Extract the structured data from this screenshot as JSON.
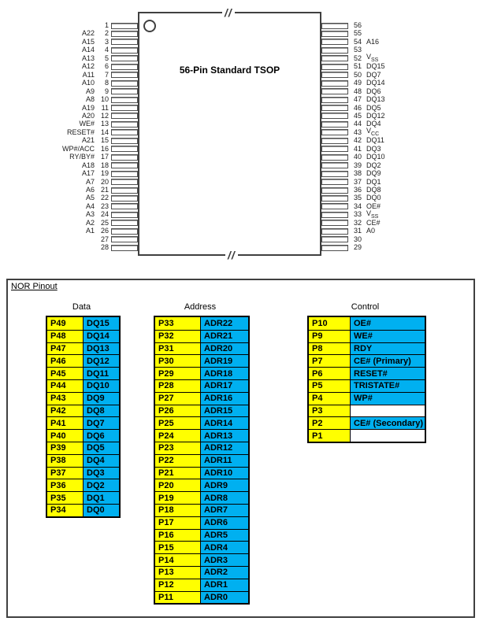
{
  "chip": {
    "title": "56-Pin Standard TSOP",
    "break_mark": "//",
    "left_pins": [
      {
        "num": "1",
        "label": ""
      },
      {
        "num": "2",
        "label": "A22"
      },
      {
        "num": "3",
        "label": "A15"
      },
      {
        "num": "4",
        "label": "A14"
      },
      {
        "num": "5",
        "label": "A13"
      },
      {
        "num": "6",
        "label": "A12"
      },
      {
        "num": "7",
        "label": "A11"
      },
      {
        "num": "8",
        "label": "A10"
      },
      {
        "num": "9",
        "label": "A9"
      },
      {
        "num": "10",
        "label": "A8"
      },
      {
        "num": "11",
        "label": "A19"
      },
      {
        "num": "12",
        "label": "A20"
      },
      {
        "num": "13",
        "label": "WE#"
      },
      {
        "num": "14",
        "label": "RESET#"
      },
      {
        "num": "15",
        "label": "A21"
      },
      {
        "num": "16",
        "label": "WP#/ACC"
      },
      {
        "num": "17",
        "label": "RY/BY#"
      },
      {
        "num": "18",
        "label": "A18"
      },
      {
        "num": "19",
        "label": "A17"
      },
      {
        "num": "20",
        "label": "A7"
      },
      {
        "num": "21",
        "label": "A6"
      },
      {
        "num": "22",
        "label": "A5"
      },
      {
        "num": "23",
        "label": "A4"
      },
      {
        "num": "24",
        "label": "A3"
      },
      {
        "num": "25",
        "label": "A2"
      },
      {
        "num": "26",
        "label": "A1"
      },
      {
        "num": "27",
        "label": ""
      },
      {
        "num": "28",
        "label": ""
      }
    ],
    "right_pins": [
      {
        "num": "56",
        "label": ""
      },
      {
        "num": "55",
        "label": ""
      },
      {
        "num": "54",
        "label": "A16"
      },
      {
        "num": "53",
        "label": ""
      },
      {
        "num": "52",
        "label": "Vss"
      },
      {
        "num": "51",
        "label": "DQ15"
      },
      {
        "num": "50",
        "label": "DQ7"
      },
      {
        "num": "49",
        "label": "DQ14"
      },
      {
        "num": "48",
        "label": "DQ6"
      },
      {
        "num": "47",
        "label": "DQ13"
      },
      {
        "num": "46",
        "label": "DQ5"
      },
      {
        "num": "45",
        "label": "DQ12"
      },
      {
        "num": "44",
        "label": "DQ4"
      },
      {
        "num": "43",
        "label": "Vcc"
      },
      {
        "num": "42",
        "label": "DQ11"
      },
      {
        "num": "41",
        "label": "DQ3"
      },
      {
        "num": "40",
        "label": "DQ10"
      },
      {
        "num": "39",
        "label": "DQ2"
      },
      {
        "num": "38",
        "label": "DQ9"
      },
      {
        "num": "37",
        "label": "DQ1"
      },
      {
        "num": "36",
        "label": "DQ8"
      },
      {
        "num": "35",
        "label": "DQ0"
      },
      {
        "num": "34",
        "label": "OE#"
      },
      {
        "num": "33",
        "label": "Vss"
      },
      {
        "num": "32",
        "label": "CE#"
      },
      {
        "num": "31",
        "label": "A0"
      },
      {
        "num": "30",
        "label": ""
      },
      {
        "num": "29",
        "label": ""
      }
    ]
  },
  "nor_pinout": {
    "section_title": "NOR Pinout",
    "colors": {
      "pin_cell": "#FFFF00",
      "signal_cell": "#00B0F0",
      "empty_cell": "#FFFFFF",
      "table_border": "#000000"
    },
    "tables": [
      {
        "name": "data",
        "header": "Data",
        "rows": [
          [
            "P49",
            "DQ15"
          ],
          [
            "P48",
            "DQ14"
          ],
          [
            "P47",
            "DQ13"
          ],
          [
            "P46",
            "DQ12"
          ],
          [
            "P45",
            "DQ11"
          ],
          [
            "P44",
            "DQ10"
          ],
          [
            "P43",
            "DQ9"
          ],
          [
            "P42",
            "DQ8"
          ],
          [
            "P41",
            "DQ7"
          ],
          [
            "P40",
            "DQ6"
          ],
          [
            "P39",
            "DQ5"
          ],
          [
            "P38",
            "DQ4"
          ],
          [
            "P37",
            "DQ3"
          ],
          [
            "P36",
            "DQ2"
          ],
          [
            "P35",
            "DQ1"
          ],
          [
            "P34",
            "DQ0"
          ]
        ]
      },
      {
        "name": "address",
        "header": "Address",
        "rows": [
          [
            "P33",
            "ADR22"
          ],
          [
            "P32",
            "ADR21"
          ],
          [
            "P31",
            "ADR20"
          ],
          [
            "P30",
            "ADR19"
          ],
          [
            "P29",
            "ADR18"
          ],
          [
            "P28",
            "ADR17"
          ],
          [
            "P27",
            "ADR16"
          ],
          [
            "P26",
            "ADR15"
          ],
          [
            "P25",
            "ADR14"
          ],
          [
            "P24",
            "ADR13"
          ],
          [
            "P23",
            "ADR12"
          ],
          [
            "P22",
            "ADR11"
          ],
          [
            "P21",
            "ADR10"
          ],
          [
            "P20",
            "ADR9"
          ],
          [
            "P19",
            "ADR8"
          ],
          [
            "P18",
            "ADR7"
          ],
          [
            "P17",
            "ADR6"
          ],
          [
            "P16",
            "ADR5"
          ],
          [
            "P15",
            "ADR4"
          ],
          [
            "P14",
            "ADR3"
          ],
          [
            "P13",
            "ADR2"
          ],
          [
            "P12",
            "ADR1"
          ],
          [
            "P11",
            "ADR0"
          ]
        ]
      },
      {
        "name": "control",
        "header": "Control",
        "rows": [
          [
            "P10",
            "OE#"
          ],
          [
            "P9",
            "WE#"
          ],
          [
            "P8",
            "RDY"
          ],
          [
            "P7",
            "CE# (Primary)"
          ],
          [
            "P6",
            "RESET#"
          ],
          [
            "P5",
            "TRISTATE#"
          ],
          [
            "P4",
            "WP#"
          ],
          [
            "P3",
            ""
          ],
          [
            "P2",
            "CE# (Secondary)"
          ],
          [
            "P1",
            ""
          ]
        ]
      }
    ]
  }
}
